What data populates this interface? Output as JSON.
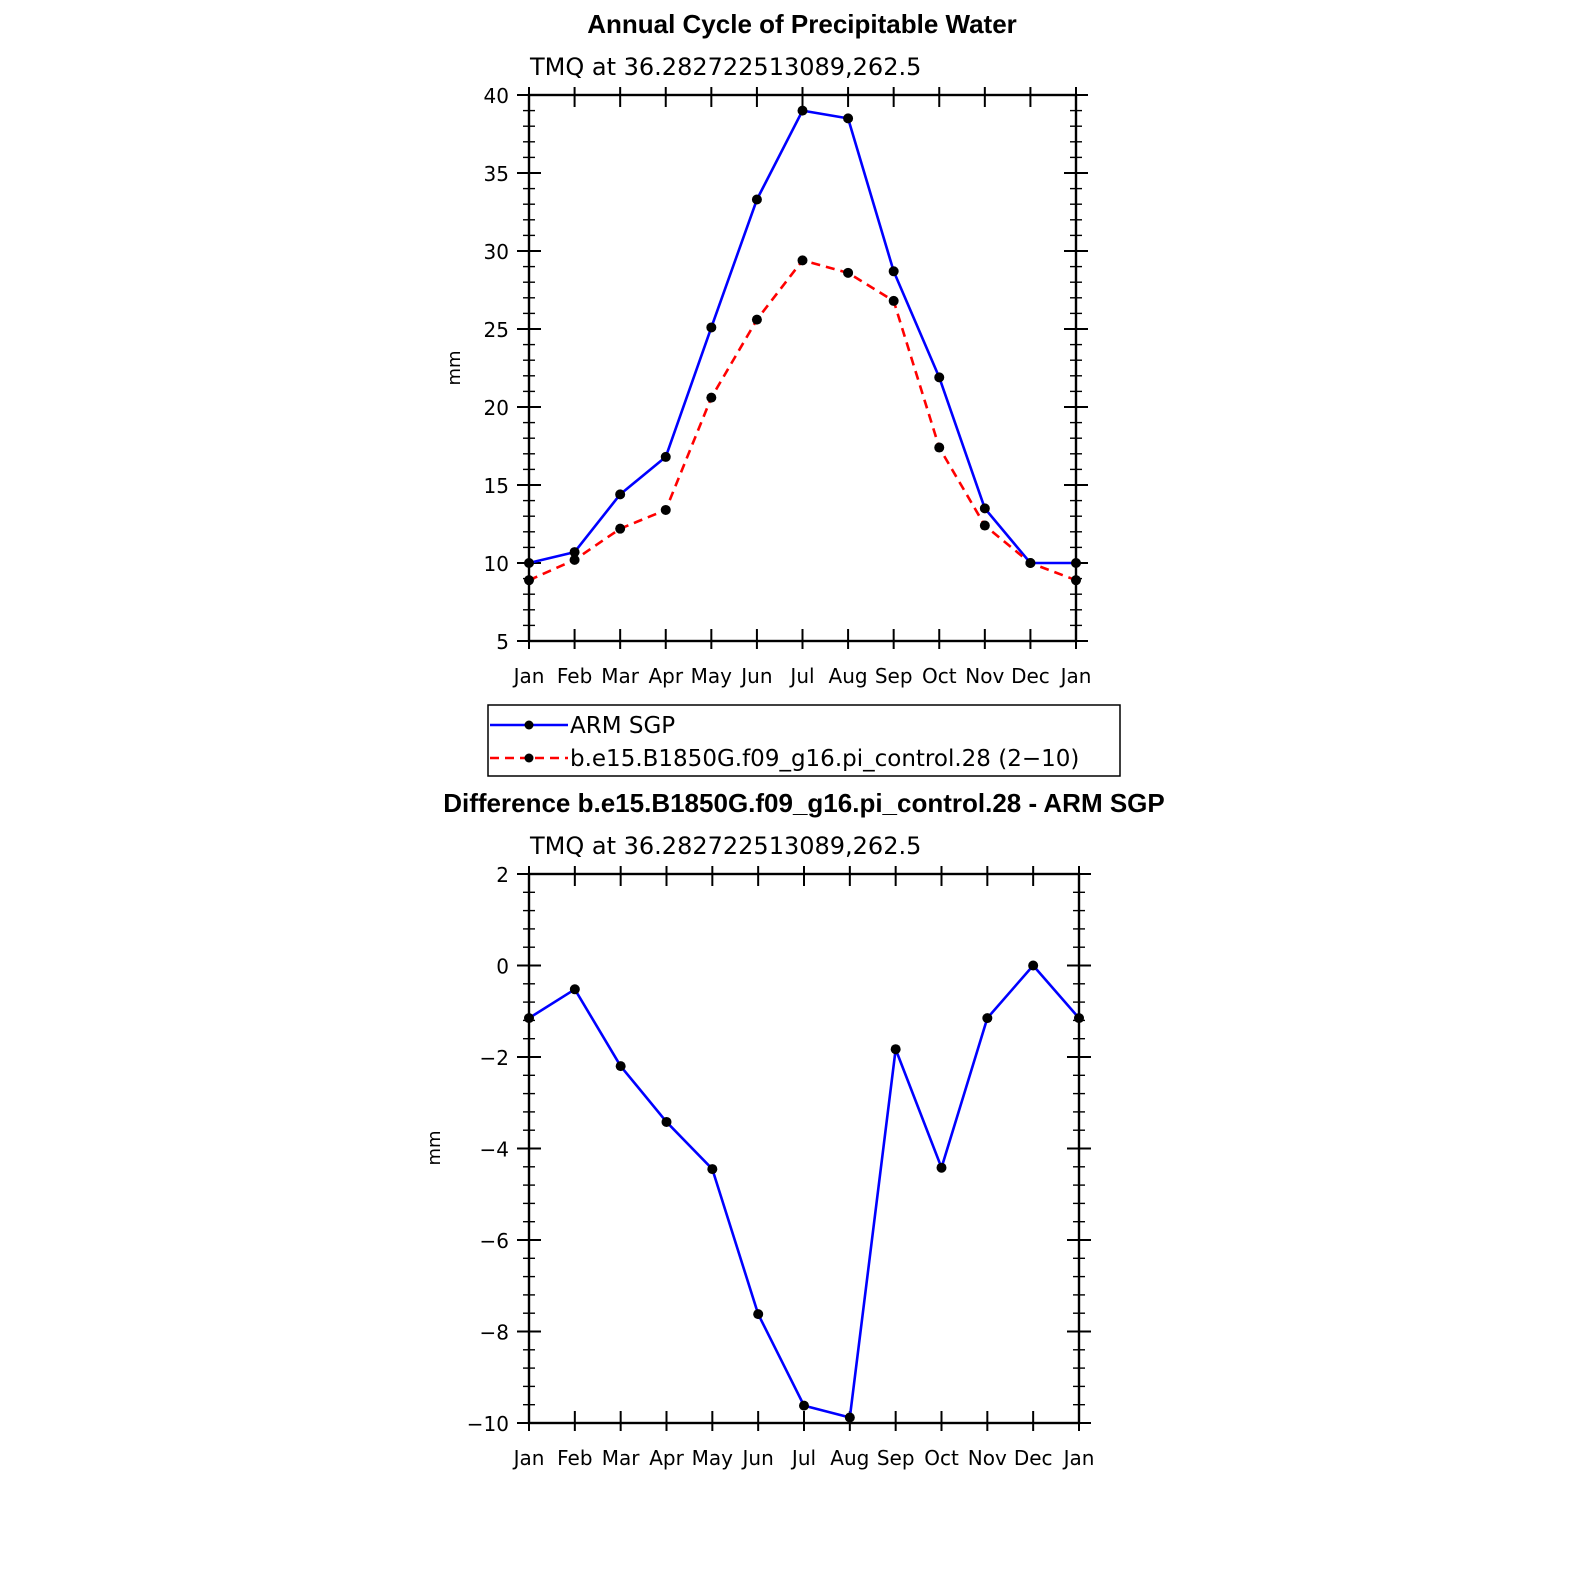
{
  "chart_data": [
    {
      "type": "line",
      "title": "Annual Cycle of Precipitable Water",
      "subtitle": "TMQ at 36.282722513089,262.5",
      "xlabel": "",
      "ylabel": "mm",
      "categories": [
        "Jan",
        "Feb",
        "Mar",
        "Apr",
        "May",
        "Jun",
        "Jul",
        "Aug",
        "Sep",
        "Oct",
        "Nov",
        "Dec",
        "Jan"
      ],
      "ylim": [
        5,
        40
      ],
      "yticks": [
        5,
        10,
        15,
        20,
        25,
        30,
        35,
        40
      ],
      "grid": false,
      "legend": "below",
      "series": [
        {
          "name": "ARM SGP",
          "color": "#0000ff",
          "dash": "solid",
          "marker": "dot",
          "values": [
            10.0,
            10.7,
            14.4,
            16.8,
            25.1,
            33.3,
            39.0,
            38.5,
            28.7,
            21.9,
            13.5,
            10.0,
            10.0
          ]
        },
        {
          "name": "b.e15.B1850G.f09_g16.pi_control.28 (2−10)",
          "color": "#ff0000",
          "dash": "dashed",
          "marker": "dot",
          "values": [
            8.9,
            10.2,
            12.2,
            13.4,
            20.6,
            25.6,
            29.4,
            28.6,
            26.8,
            17.4,
            12.4,
            10.0,
            8.9
          ]
        }
      ]
    },
    {
      "type": "line",
      "title": "Difference b.e15.B1850G.f09_g16.pi_control.28 - ARM SGP",
      "subtitle": "TMQ at 36.282722513089,262.5",
      "xlabel": "",
      "ylabel": "mm",
      "categories": [
        "Jan",
        "Feb",
        "Mar",
        "Apr",
        "May",
        "Jun",
        "Jul",
        "Aug",
        "Sep",
        "Oct",
        "Nov",
        "Dec",
        "Jan"
      ],
      "ylim": [
        -10,
        2
      ],
      "yticks": [
        -10,
        -8,
        -6,
        -4,
        -2,
        0,
        2
      ],
      "ytick_labels": [
        "−10",
        "−8",
        "−6",
        "−4",
        "−2",
        "0",
        "2"
      ],
      "grid": false,
      "series": [
        {
          "color": "#0000ff",
          "dash": "solid",
          "marker": "dot",
          "values": [
            -1.15,
            -0.52,
            -2.2,
            -3.42,
            -4.45,
            -7.62,
            -9.62,
            -9.88,
            -1.83,
            -4.42,
            -1.15,
            0.0,
            -1.15
          ]
        }
      ]
    }
  ]
}
